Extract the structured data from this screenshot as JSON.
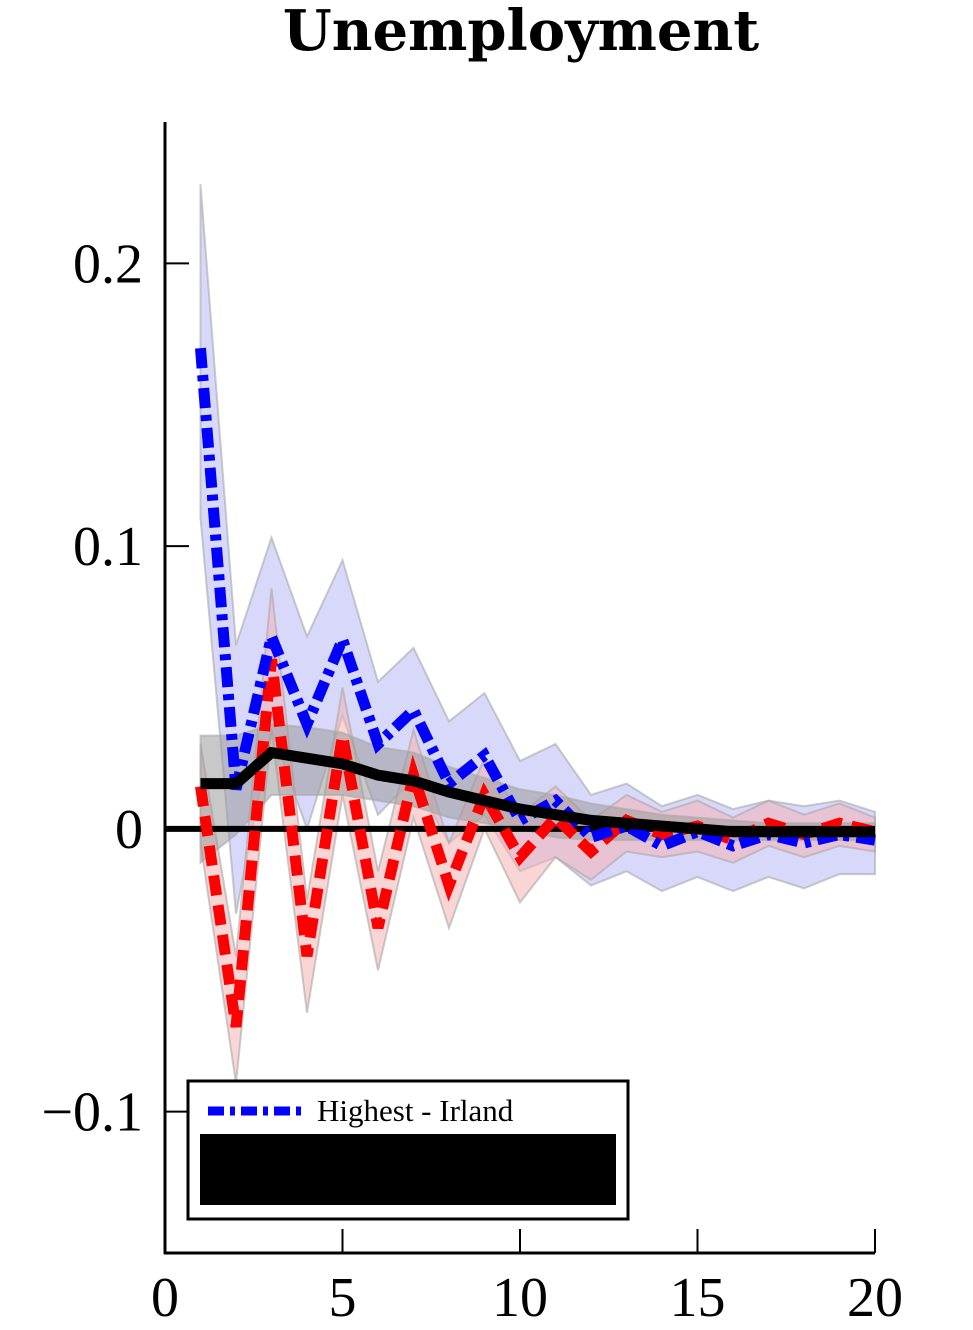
{
  "chart_data": {
    "type": "line",
    "title": "Unemployment",
    "xlabel": "",
    "ylabel": "",
    "xlim": [
      0,
      20
    ],
    "ylim": [
      -0.15,
      0.25
    ],
    "x_ticks": [
      0,
      5,
      10,
      15,
      20
    ],
    "y_ticks": [
      -0.1,
      0,
      0.1,
      0.2
    ],
    "x_tick_labels": [
      "0",
      "5",
      "10",
      "15",
      "20"
    ],
    "y_tick_labels": [
      "−0.1",
      "0",
      "0.1",
      "0.2"
    ],
    "zero_line": true,
    "grid": false,
    "legend_position": "bottom-left",
    "x": [
      1,
      2,
      3,
      4,
      5,
      6,
      7,
      8,
      9,
      10,
      11,
      12,
      13,
      14,
      15,
      16,
      17,
      18,
      19,
      20
    ],
    "series": [
      {
        "name": "Highest - Irland",
        "color": "#0000ff",
        "band_color": "#b8b8f5",
        "style": "dash-dot",
        "values": [
          0.17,
          0.014,
          0.068,
          0.037,
          0.067,
          0.03,
          0.042,
          0.016,
          0.026,
          0.003,
          0.01,
          -0.003,
          0.001,
          -0.006,
          -0.001,
          -0.006,
          -0.002,
          -0.005,
          -0.002,
          -0.004
        ],
        "lower": [
          0.11,
          -0.03,
          0.035,
          0.0,
          0.04,
          0.005,
          0.018,
          -0.005,
          0.005,
          -0.015,
          -0.01,
          -0.02,
          -0.015,
          -0.022,
          -0.017,
          -0.022,
          -0.017,
          -0.021,
          -0.016,
          -0.016
        ],
        "upper": [
          0.228,
          0.065,
          0.103,
          0.068,
          0.095,
          0.052,
          0.064,
          0.038,
          0.048,
          0.024,
          0.03,
          0.012,
          0.016,
          0.008,
          0.012,
          0.007,
          0.01,
          0.008,
          0.01,
          0.006
        ]
      },
      {
        "name": "",
        "color": "#ff0000",
        "band_color": "#f6b3b3",
        "style": "dashed",
        "values": [
          0.015,
          -0.07,
          0.06,
          -0.045,
          0.033,
          -0.035,
          0.019,
          -0.02,
          0.012,
          -0.01,
          0.004,
          -0.008,
          0.003,
          -0.002,
          0.001,
          -0.004,
          0.002,
          -0.002,
          0.002,
          -0.001
        ],
        "lower": [
          -0.005,
          -0.09,
          0.035,
          -0.065,
          0.012,
          -0.05,
          0.004,
          -0.035,
          0.0,
          -0.026,
          -0.01,
          -0.018,
          -0.008,
          -0.01,
          -0.008,
          -0.012,
          -0.006,
          -0.01,
          -0.006,
          -0.008
        ],
        "upper": [
          0.03,
          -0.045,
          0.085,
          -0.025,
          0.05,
          -0.015,
          0.035,
          -0.005,
          0.025,
          0.005,
          0.015,
          0.003,
          0.012,
          0.006,
          0.01,
          0.004,
          0.01,
          0.005,
          0.009,
          0.004
        ]
      },
      {
        "name": "",
        "color": "#000000",
        "band_color": "#9a9a9a",
        "style": "solid",
        "values": [
          0.016,
          0.016,
          0.027,
          0.025,
          0.023,
          0.019,
          0.017,
          0.013,
          0.01,
          0.007,
          0.005,
          0.003,
          0.002,
          0.001,
          0.0,
          -0.001,
          -0.001,
          -0.001,
          -0.001,
          -0.001
        ],
        "lower": [
          -0.012,
          -0.002,
          0.012,
          0.012,
          0.012,
          0.01,
          0.008,
          0.004,
          0.002,
          0.0,
          -0.003,
          -0.004,
          -0.004,
          -0.004,
          -0.004,
          -0.004,
          -0.004,
          -0.004,
          -0.004,
          -0.004
        ],
        "upper": [
          0.033,
          0.033,
          0.037,
          0.036,
          0.034,
          0.029,
          0.027,
          0.022,
          0.018,
          0.014,
          0.012,
          0.009,
          0.007,
          0.005,
          0.004,
          0.003,
          0.002,
          0.002,
          0.002,
          0.002
        ]
      }
    ],
    "legend_entries": [
      "Highest - Irland"
    ]
  }
}
